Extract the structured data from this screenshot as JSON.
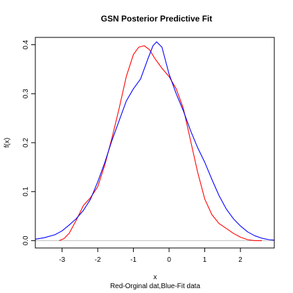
{
  "chart_data": {
    "type": "line",
    "title": "GSN Posterior Predictive Fit",
    "xlabel": "x",
    "ylabel": "f(x)",
    "caption": "Red-Orginal dat,Blue-Fit data",
    "xlim": [
      -3.75,
      2.95
    ],
    "ylim": [
      -0.015,
      0.415
    ],
    "x_ticks": [
      -3,
      -2,
      -1,
      0,
      1,
      2
    ],
    "y_ticks": [
      0.0,
      0.1,
      0.2,
      0.3,
      0.4
    ],
    "x_tick_labels": [
      "-3",
      "-2",
      "-1",
      "0",
      "1",
      "2"
    ],
    "y_tick_labels": [
      "0.0",
      "0.1",
      "0.2",
      "0.3",
      "0.4"
    ],
    "baseline": 0,
    "baseline_color": "#bebebe",
    "grid": false,
    "legend": "none",
    "series": [
      {
        "color": "#ff0000",
        "x": [
          -3.08,
          -2.95,
          -2.8,
          -2.6,
          -2.4,
          -2.2,
          -2.0,
          -1.8,
          -1.6,
          -1.4,
          -1.2,
          -1.0,
          -0.85,
          -0.7,
          -0.55,
          -0.4,
          -0.2,
          0.0,
          0.2,
          0.4,
          0.6,
          0.8,
          1.0,
          1.2,
          1.4,
          1.6,
          1.8,
          2.0,
          2.2,
          2.4,
          2.6
        ],
        "y": [
          0.0,
          0.004,
          0.015,
          0.042,
          0.072,
          0.088,
          0.11,
          0.155,
          0.21,
          0.27,
          0.335,
          0.38,
          0.395,
          0.398,
          0.39,
          0.372,
          0.352,
          0.335,
          0.31,
          0.27,
          0.205,
          0.14,
          0.085,
          0.053,
          0.035,
          0.025,
          0.015,
          0.007,
          0.002,
          0.0,
          0.0
        ]
      },
      {
        "color": "#0000ff",
        "x": [
          -3.75,
          -3.5,
          -3.2,
          -3.0,
          -2.8,
          -2.6,
          -2.4,
          -2.2,
          -2.0,
          -1.8,
          -1.6,
          -1.4,
          -1.2,
          -1.0,
          -0.8,
          -0.6,
          -0.45,
          -0.35,
          -0.2,
          0.0,
          0.2,
          0.4,
          0.6,
          0.8,
          1.0,
          1.2,
          1.4,
          1.6,
          1.8,
          2.0,
          2.2,
          2.4,
          2.6,
          2.8,
          2.95
        ],
        "y": [
          0.003,
          0.006,
          0.012,
          0.02,
          0.032,
          0.045,
          0.062,
          0.085,
          0.12,
          0.16,
          0.205,
          0.245,
          0.285,
          0.31,
          0.33,
          0.37,
          0.398,
          0.406,
          0.395,
          0.34,
          0.3,
          0.265,
          0.225,
          0.19,
          0.16,
          0.125,
          0.092,
          0.065,
          0.045,
          0.03,
          0.018,
          0.01,
          0.005,
          0.002,
          0.001
        ]
      }
    ]
  }
}
